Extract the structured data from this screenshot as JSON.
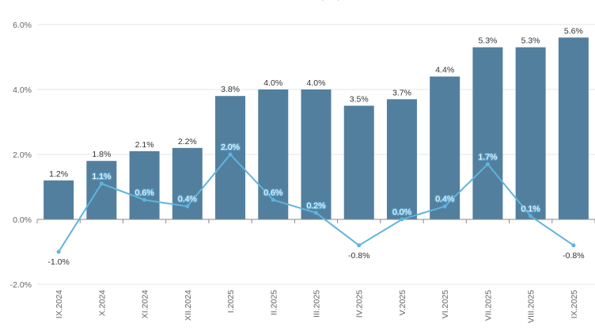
{
  "chart_data": {
    "type": "bar",
    "title": "..., ...; ...",
    "categories": [
      "IX.2024",
      "X.2024",
      "XI.2024",
      "XII.2024",
      "I.2025",
      "II.2025",
      "III.2025",
      "IV.2025",
      "V.2025",
      "VI.2025",
      "VII.2025",
      "VIII.2025",
      "IX.2025"
    ],
    "series": [
      {
        "name": "bars",
        "kind": "bar",
        "values": [
          1.2,
          1.8,
          2.1,
          2.2,
          3.8,
          4.0,
          4.0,
          3.5,
          3.7,
          4.4,
          5.3,
          5.3,
          5.6
        ],
        "labels": [
          "1.2%",
          "1.8%",
          "2.1%",
          "2.2%",
          "3.8%",
          "4.0%",
          "4.0%",
          "3.5%",
          "3.7%",
          "4.4%",
          "5.3%",
          "5.3%",
          "5.6%"
        ],
        "color": "#537f9e"
      },
      {
        "name": "line",
        "kind": "line",
        "values": [
          -1.0,
          1.1,
          0.6,
          0.4,
          2.0,
          0.6,
          0.2,
          -0.8,
          0.0,
          0.4,
          1.7,
          0.1,
          -0.8
        ],
        "labels": [
          "-1.0%",
          "1.1%",
          "0.6%",
          "0.4%",
          "2.0%",
          "0.6%",
          "0.2%",
          "-0.8%",
          "0.0%",
          "0.4%",
          "1.7%",
          "0.1%",
          "-0.8%"
        ],
        "color": "#5fb4dc"
      }
    ],
    "ylim": [
      -2.0,
      6.0
    ],
    "yticks": [
      -2.0,
      0.0,
      2.0,
      4.0,
      6.0
    ],
    "ytick_labels": [
      "-2.0%",
      "0.0%",
      "2.0%",
      "4.0%",
      "6.0%"
    ],
    "grid": true,
    "legend": "none"
  }
}
